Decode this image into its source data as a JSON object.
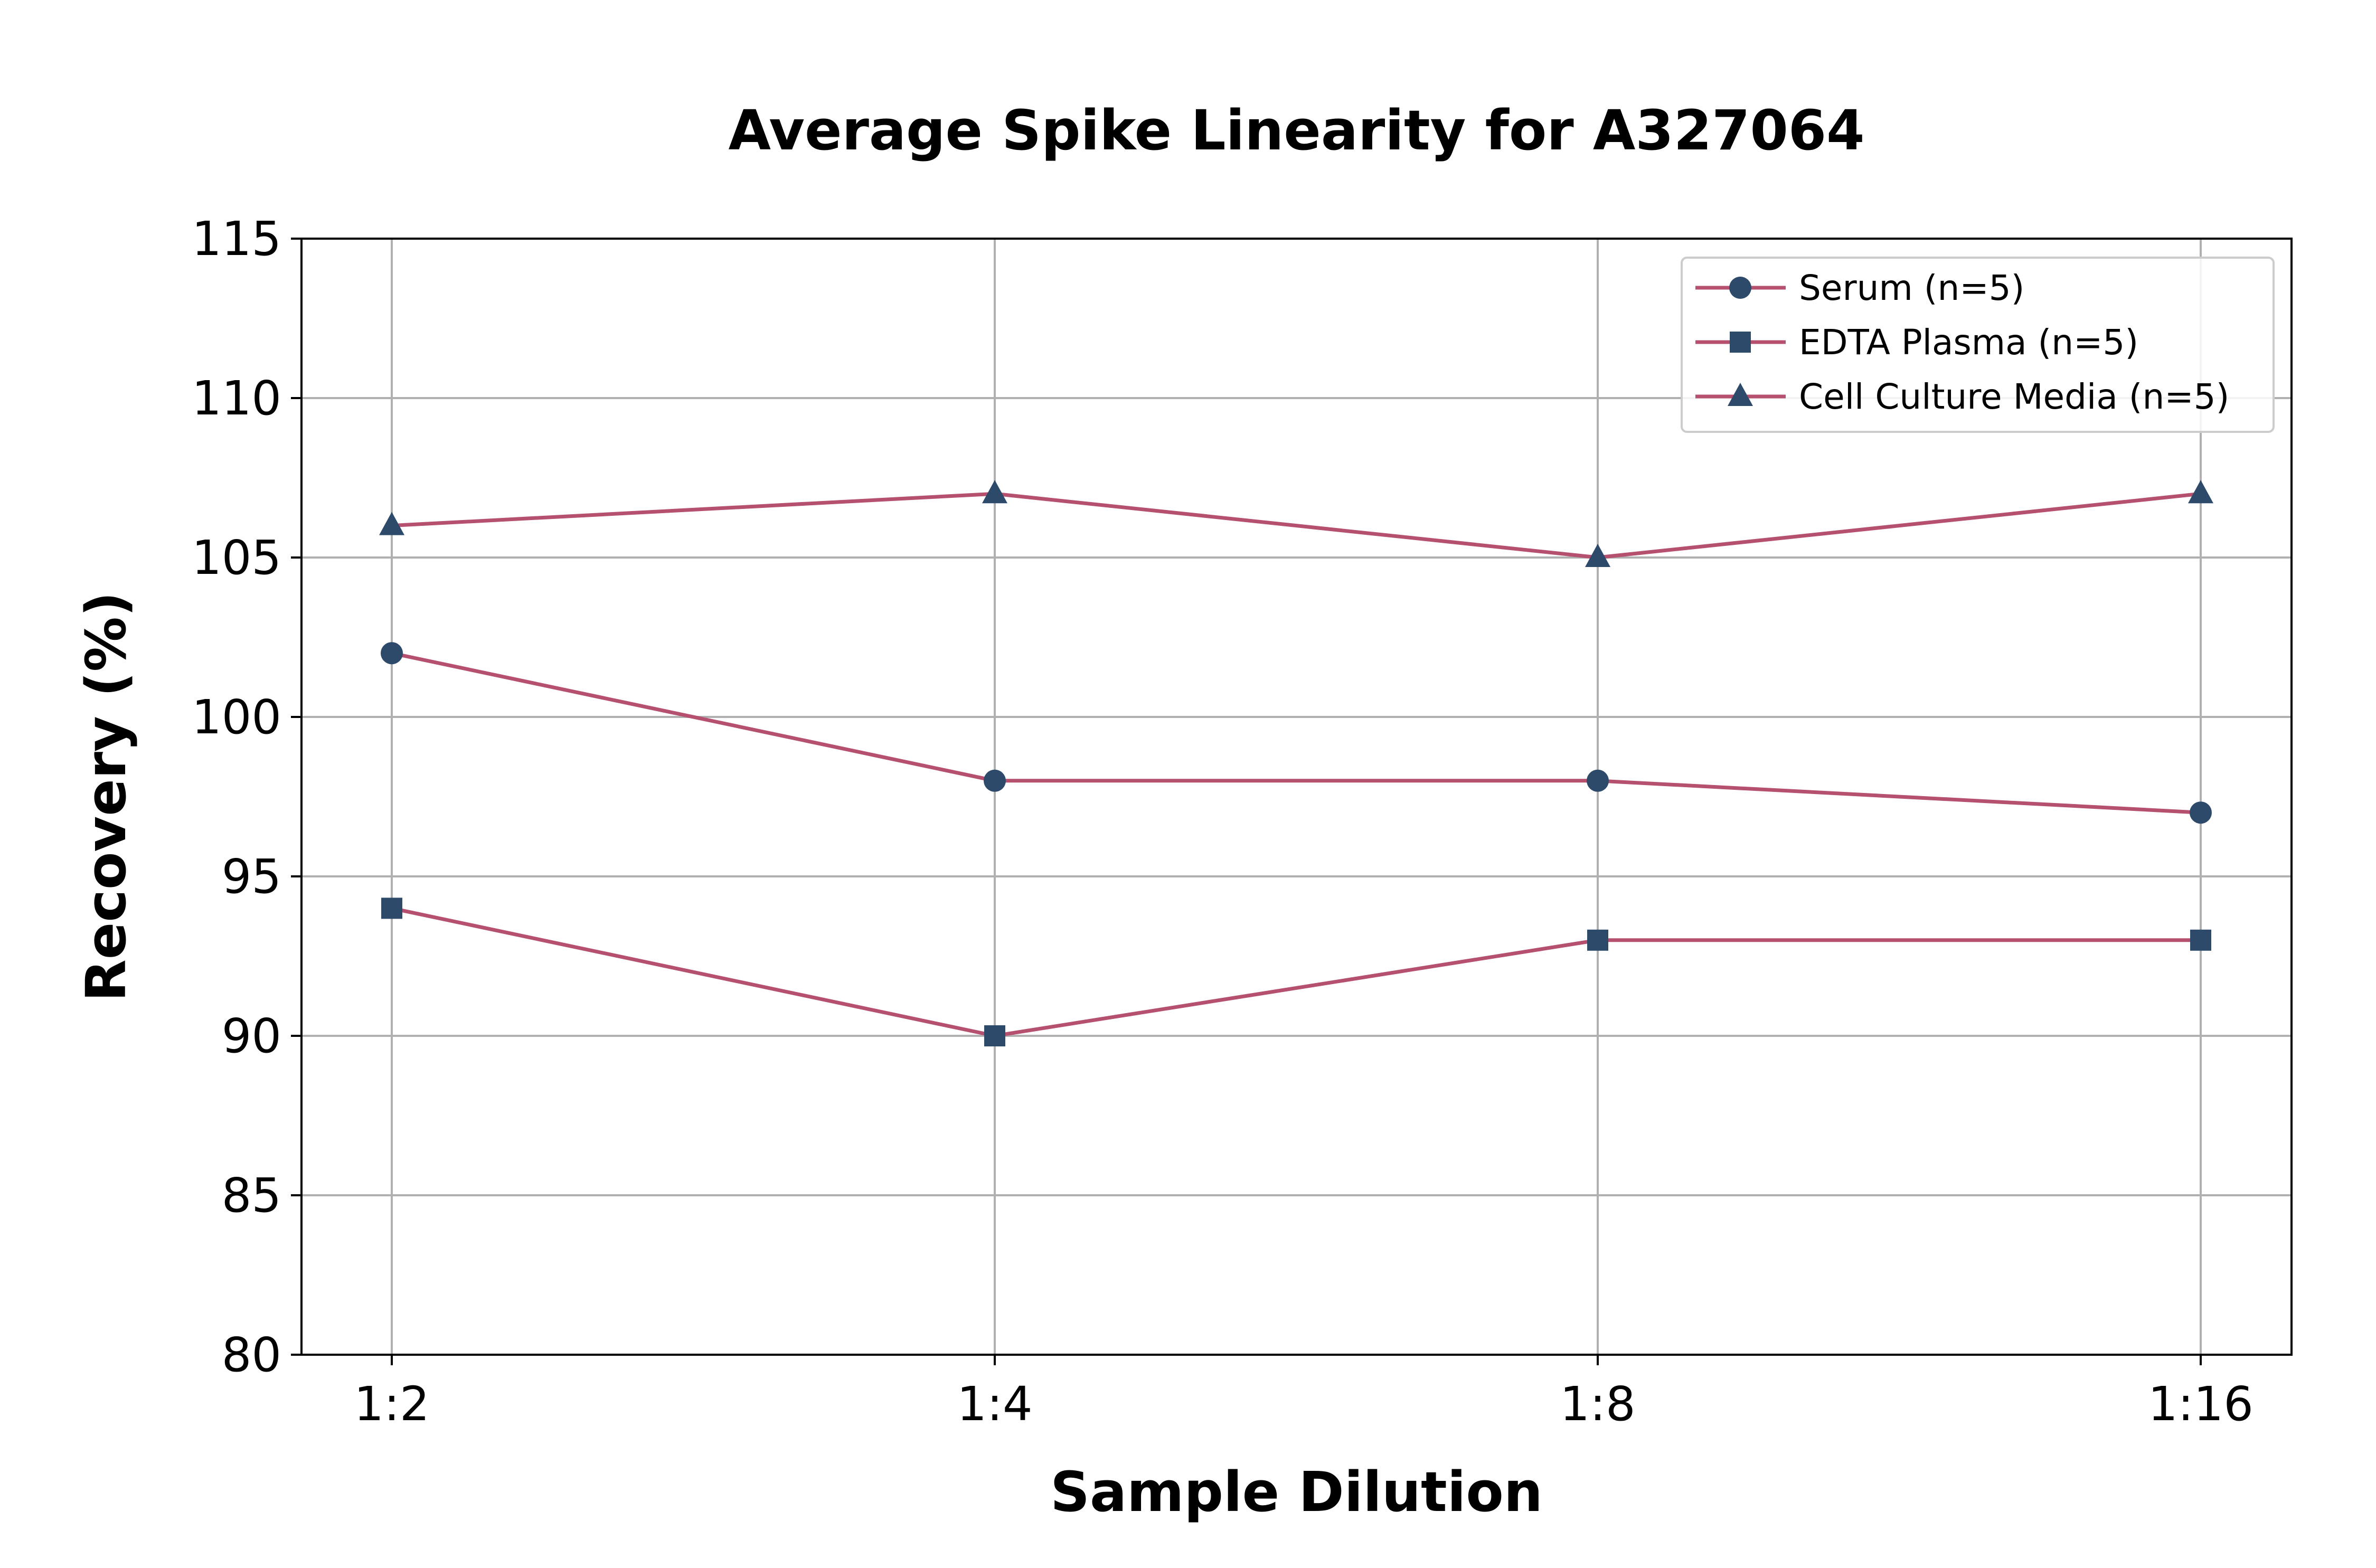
{
  "chart_data": {
    "type": "line",
    "title": "Average Spike Linearity for A327064",
    "xlabel": "Sample Dilution",
    "ylabel": "Recovery (%)",
    "categories": [
      "1:2",
      "1:4",
      "1:8",
      "1:16"
    ],
    "ylim": [
      80,
      115
    ],
    "yticks": [
      80,
      85,
      90,
      95,
      100,
      105,
      110,
      115
    ],
    "grid": true,
    "legend_position": "top-right",
    "line_color": "#b5506f",
    "marker_color": "#2e4a6b",
    "series": [
      {
        "name": "Serum (n=5)",
        "marker": "circle",
        "values": [
          102,
          98,
          98,
          97
        ]
      },
      {
        "name": "EDTA Plasma (n=5)",
        "marker": "square",
        "values": [
          94,
          90,
          93,
          93
        ]
      },
      {
        "name": "Cell Culture Media (n=5)",
        "marker": "triangle",
        "values": [
          106,
          107,
          105,
          107
        ]
      }
    ]
  }
}
